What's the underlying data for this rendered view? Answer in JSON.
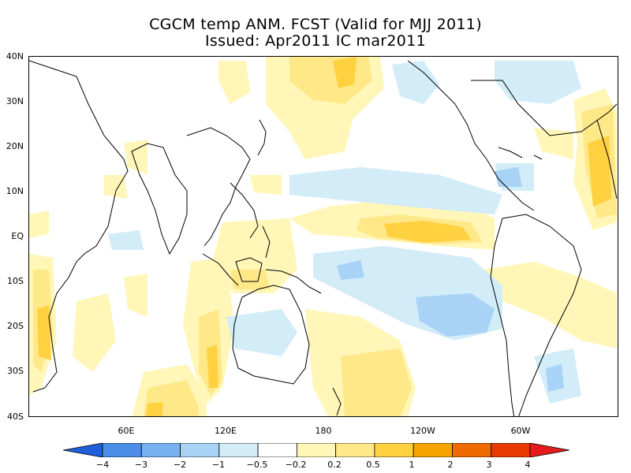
{
  "title": {
    "line1": "CGCM temp ANM. FCST  (Valid for MJJ 2011)",
    "line2": "Issued:  Apr2011 IC mar2011"
  },
  "axes": {
    "lat_labels": [
      "40N",
      "30N",
      "20N",
      "10N",
      "EQ",
      "10S",
      "20S",
      "30S",
      "40S"
    ],
    "lon_labels": [
      "60E",
      "120E",
      "180",
      "120W",
      "60W"
    ]
  },
  "colorbar": {
    "labels": [
      "−4",
      "−3",
      "−2",
      "−1",
      "−0.5",
      "−0.2",
      "0.2",
      "0.5",
      "1",
      "2",
      "3",
      "4"
    ],
    "colors": [
      "#1f5fd8",
      "#4b8ee8",
      "#78b0f0",
      "#a8d2f6",
      "#d2ecf8",
      "#ffffff",
      "#fff6b8",
      "#ffe888",
      "#ffd040",
      "#f7a400",
      "#ef6a00",
      "#e83a00",
      "#e41a1c"
    ]
  },
  "anomaly_colors": {
    "light_warm": "#fff6b8",
    "warm": "#ffe888",
    "warmer": "#ffd040",
    "hot": "#f7a400",
    "light_cool": "#d2ecf8",
    "cool": "#a8d2f6"
  }
}
